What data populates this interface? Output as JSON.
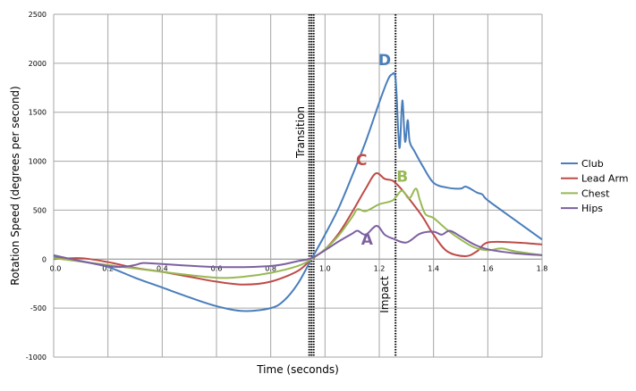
{
  "chart_data": {
    "type": "line",
    "title": "",
    "xlabel": "Time (seconds)",
    "ylabel": "Rotation Speed (degrees per second)",
    "xlim": [
      0,
      1.8
    ],
    "ylim": [
      -1000,
      2500
    ],
    "xticks": [
      0,
      0.2,
      0.4,
      0.6,
      0.8,
      1.0,
      1.2,
      1.4,
      1.6,
      1.8
    ],
    "xtick_labels": [
      "0.0",
      "0.2",
      "0.4",
      "0.6",
      "0.8",
      "1.0",
      "1.2",
      "1.4",
      "1.6",
      "1.8"
    ],
    "yticks": [
      -1000,
      -500,
      0,
      500,
      1000,
      1500,
      2000,
      2500
    ],
    "ytick_labels": [
      "-1000",
      "-500",
      "0",
      "500",
      "1000",
      "1500",
      "2000",
      "2500"
    ],
    "grid": true,
    "legend_position": "right",
    "series": [
      {
        "name": "Club",
        "color": "#4a7ebb",
        "x": [
          0,
          0.1,
          0.2,
          0.3,
          0.4,
          0.5,
          0.6,
          0.7,
          0.8,
          0.85,
          0.9,
          0.95,
          1.0,
          1.05,
          1.1,
          1.15,
          1.2,
          1.23,
          1.246,
          1.26,
          1.27,
          1.276,
          1.285,
          1.295,
          1.305,
          1.312,
          1.33,
          1.36,
          1.4,
          1.45,
          1.5,
          1.52,
          1.56,
          1.58,
          1.6,
          1.7,
          1.8
        ],
        "y": [
          20,
          -20,
          -80,
          -190,
          -290,
          -390,
          -480,
          -530,
          -500,
          -420,
          -250,
          0,
          250,
          520,
          850,
          1200,
          1600,
          1820,
          1885,
          1840,
          1300,
          1150,
          1620,
          1200,
          1420,
          1200,
          1100,
          950,
          780,
          730,
          720,
          740,
          680,
          660,
          600,
          400,
          200
        ]
      },
      {
        "name": "Lead Arm",
        "color": "#be4b48",
        "x": [
          0,
          0.1,
          0.2,
          0.3,
          0.4,
          0.5,
          0.6,
          0.7,
          0.8,
          0.9,
          0.95,
          1.0,
          1.05,
          1.1,
          1.15,
          1.187,
          1.22,
          1.25,
          1.28,
          1.32,
          1.36,
          1.4,
          1.45,
          1.517,
          1.56,
          1.6,
          1.7,
          1.8
        ],
        "y": [
          0,
          10,
          -30,
          -90,
          -130,
          -180,
          -230,
          -260,
          -230,
          -120,
          0,
          100,
          260,
          480,
          720,
          875,
          820,
          800,
          720,
          580,
          430,
          250,
          80,
          30,
          80,
          170,
          170,
          150
        ]
      },
      {
        "name": "Chest",
        "color": "#98b954",
        "x": [
          0,
          0.2,
          0.4,
          0.6,
          0.7,
          0.8,
          0.9,
          0.95,
          1.0,
          1.05,
          1.1,
          1.12,
          1.15,
          1.2,
          1.25,
          1.283,
          1.31,
          1.335,
          1.35,
          1.37,
          1.4,
          1.45,
          1.5,
          1.55,
          1.6,
          1.65,
          1.7,
          1.8
        ],
        "y": [
          10,
          -60,
          -130,
          -190,
          -180,
          -140,
          -70,
          0,
          100,
          240,
          430,
          510,
          490,
          560,
          600,
          700,
          620,
          720,
          600,
          460,
          420,
          300,
          200,
          120,
          90,
          110,
          80,
          40
        ]
      },
      {
        "name": "Hips",
        "color": "#7d60a0",
        "x": [
          0,
          0.1,
          0.2,
          0.25,
          0.3,
          0.33,
          0.4,
          0.6,
          0.8,
          0.9,
          0.95,
          1.0,
          1.05,
          1.1,
          1.12,
          1.15,
          1.19,
          1.22,
          1.25,
          1.3,
          1.35,
          1.4,
          1.43,
          1.46,
          1.5,
          1.55,
          1.6,
          1.7,
          1.8
        ],
        "y": [
          40,
          -20,
          -70,
          -80,
          -60,
          -40,
          -50,
          -80,
          -70,
          -20,
          10,
          90,
          180,
          260,
          290,
          250,
          340,
          250,
          210,
          170,
          260,
          280,
          250,
          290,
          230,
          150,
          100,
          60,
          40
        ]
      }
    ],
    "vertical_markers": [
      {
        "label": "Transition",
        "x": 0.95
      },
      {
        "label": "Impact",
        "x": 1.26
      }
    ],
    "annotations": [
      {
        "text": "D",
        "x": 1.22,
        "y": 1980,
        "color": "#4a7ebb"
      },
      {
        "text": "C",
        "x": 1.135,
        "y": 960,
        "color": "#be4b48"
      },
      {
        "text": "B",
        "x": 1.285,
        "y": 790,
        "color": "#98b954"
      },
      {
        "text": "A",
        "x": 1.155,
        "y": 150,
        "color": "#7d60a0"
      }
    ]
  }
}
